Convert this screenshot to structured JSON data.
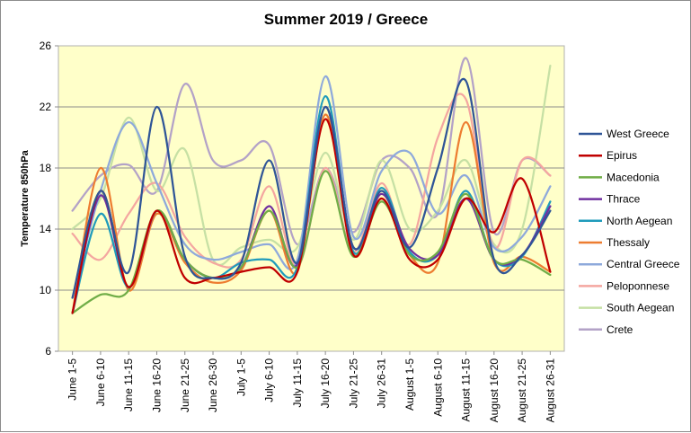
{
  "chart_data": {
    "type": "line",
    "title": "Summer 2019 / Greece",
    "xlabel": "",
    "ylabel": "Temperature 850hPa",
    "ylim": [
      6,
      26
    ],
    "yticks": [
      6,
      10,
      14,
      18,
      22,
      26
    ],
    "grid": true,
    "smooth": true,
    "legend_position": "right",
    "plot_background": "#FFFFC9",
    "categories": [
      "June 1-5",
      "June 6-10",
      "June 11-15",
      "June 16-20",
      "June 21-25",
      "June 26-30",
      "July 1-5",
      "July 6-10",
      "July 11-15",
      "July 16-20",
      "July 21-25",
      "July 26-31",
      "August 1-5",
      "August 6-10",
      "August 11-15",
      "August 16-20",
      "August 21-25",
      "August 26-31"
    ],
    "series": [
      {
        "name": "West Greece",
        "color": "#2F5597",
        "values": [
          9.5,
          16.5,
          11.2,
          22.0,
          12.2,
          10.8,
          11.8,
          18.5,
          11.8,
          22.0,
          12.8,
          16.5,
          12.8,
          18.0,
          23.7,
          12.0,
          12.3,
          15.2
        ]
      },
      {
        "name": "Epirus",
        "color": "#C00000",
        "values": [
          8.5,
          16.5,
          10.2,
          15.2,
          10.8,
          10.8,
          11.2,
          11.5,
          11.2,
          21.2,
          12.3,
          16.0,
          12.0,
          12.0,
          16.0,
          13.8,
          17.3,
          11.2
        ]
      },
      {
        "name": "Macedonia",
        "color": "#70AD47",
        "values": [
          8.5,
          9.7,
          10.0,
          15.2,
          12.0,
          10.8,
          11.5,
          15.2,
          11.5,
          17.8,
          12.2,
          15.8,
          12.3,
          12.5,
          16.3,
          12.0,
          12.0,
          11.0
        ]
      },
      {
        "name": "Thrace",
        "color": "#7030A0",
        "values": [
          8.5,
          16.2,
          10.2,
          15.2,
          12.0,
          10.8,
          11.5,
          15.5,
          11.7,
          22.0,
          12.8,
          16.3,
          12.7,
          12.3,
          16.0,
          12.0,
          12.3,
          15.5
        ]
      },
      {
        "name": "North Aegean",
        "color": "#1F9BBB",
        "values": [
          8.5,
          15.0,
          10.2,
          15.2,
          12.0,
          10.8,
          11.8,
          12.0,
          11.5,
          22.7,
          12.5,
          16.7,
          12.5,
          12.3,
          16.5,
          12.0,
          12.2,
          15.8
        ]
      },
      {
        "name": "Thessaly",
        "color": "#ED7D31",
        "values": [
          8.5,
          18.0,
          10.0,
          15.0,
          11.8,
          10.5,
          11.3,
          15.2,
          11.2,
          21.5,
          12.3,
          16.0,
          12.3,
          11.8,
          21.0,
          11.8,
          12.2,
          11.2
        ]
      },
      {
        "name": "Central Greece",
        "color": "#8EA9DB",
        "values": [
          9.5,
          16.5,
          21.0,
          17.0,
          13.0,
          12.0,
          12.5,
          13.0,
          12.0,
          24.0,
          13.5,
          17.8,
          19.0,
          15.0,
          17.5,
          12.8,
          13.5,
          16.8
        ]
      },
      {
        "name": "Peloponnese",
        "color": "#F4A6A0",
        "values": [
          13.7,
          12.0,
          15.0,
          17.0,
          13.5,
          11.8,
          12.0,
          16.8,
          11.5,
          18.0,
          12.5,
          17.0,
          13.0,
          20.0,
          22.5,
          12.8,
          18.5,
          17.5
        ]
      },
      {
        "name": "South Aegean",
        "color": "#C6E0A4",
        "values": [
          14.0,
          16.0,
          21.3,
          16.5,
          19.2,
          12.0,
          12.8,
          13.3,
          12.8,
          19.0,
          13.3,
          18.5,
          14.0,
          15.2,
          18.5,
          13.0,
          14.0,
          24.7
        ]
      },
      {
        "name": "Crete",
        "color": "#B3A2C7",
        "values": [
          15.2,
          17.5,
          18.2,
          16.5,
          23.5,
          18.5,
          18.5,
          19.5,
          13.0,
          18.0,
          13.8,
          18.5,
          18.0,
          15.0,
          25.2,
          13.8,
          18.5,
          17.5
        ]
      }
    ]
  }
}
